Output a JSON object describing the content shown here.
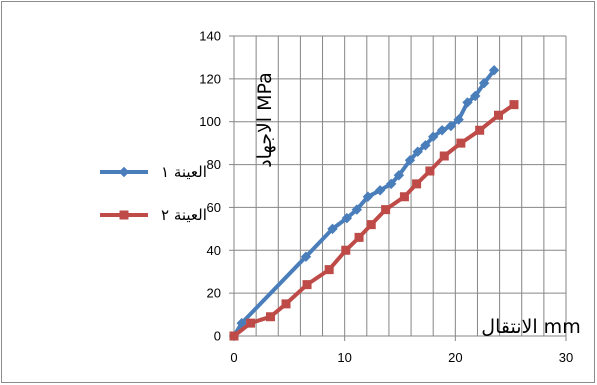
{
  "chart_data": {
    "type": "line",
    "title": "",
    "xlabel": "الانتقال mm",
    "ylabel": "الاجهاد MPa",
    "xlim": [
      0,
      30
    ],
    "ylim": [
      0,
      140
    ],
    "x_ticks": [
      "0",
      "10",
      "20",
      "30"
    ],
    "y_ticks": [
      "0",
      "20",
      "40",
      "60",
      "80",
      "100",
      "120",
      "140"
    ],
    "grid": {
      "horizontal": true,
      "vertical": true,
      "vertical_step": 2
    },
    "legend_position": "left",
    "series": [
      {
        "name": "العينة ١",
        "color": "#4a7ebb",
        "marker": "diamond",
        "x": [
          0,
          0.7,
          6.5,
          8.9,
          10.2,
          11.1,
          12.1,
          13.2,
          14.2,
          14.9,
          15.9,
          16.6,
          17.3,
          18.0,
          18.8,
          19.6,
          20.3,
          21.1,
          21.8,
          22.6,
          23.5
        ],
        "y": [
          0,
          6,
          37,
          50,
          55,
          59,
          65,
          68,
          71,
          75,
          82,
          86,
          89,
          93,
          96,
          98,
          101,
          109,
          112,
          118,
          124
        ]
      },
      {
        "name": "العينة ٢",
        "color": "#be4b48",
        "marker": "square",
        "x": [
          0,
          1.5,
          3.3,
          4.7,
          6.6,
          8.6,
          10.1,
          11.3,
          12.4,
          13.7,
          15.4,
          16.5,
          17.7,
          19.0,
          20.5,
          22.2,
          23.9,
          25.3
        ],
        "y": [
          0,
          6,
          9,
          15,
          24,
          31,
          40,
          46,
          52,
          59,
          65,
          71,
          77,
          84,
          90,
          96,
          103,
          108
        ]
      }
    ]
  }
}
